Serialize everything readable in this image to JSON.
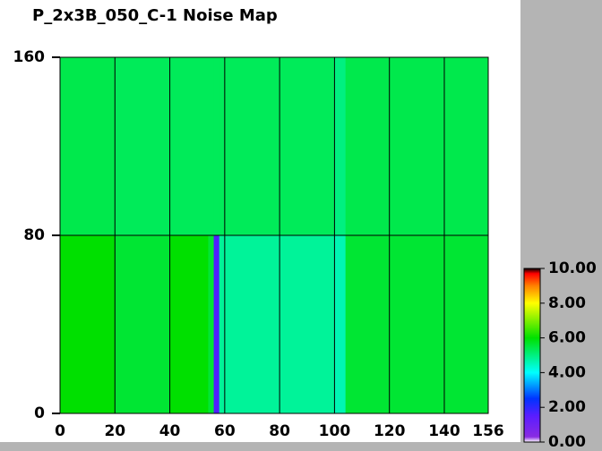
{
  "chart_data": {
    "type": "heatmap",
    "title": "P_2x3B_050_C-1 Noise Map",
    "x_edges": [
      0,
      20,
      40,
      54,
      56,
      58,
      100,
      104,
      156
    ],
    "y_edges": [
      0,
      80,
      160
    ],
    "z": [
      [
        6.0,
        5.6,
        6.0,
        5.6,
        1.6,
        4.8,
        4.6,
        5.6
      ],
      [
        5.4,
        5.3,
        5.3,
        5.3,
        5.3,
        5.3,
        5.0,
        5.4
      ]
    ],
    "xlim": [
      0,
      156
    ],
    "ylim": [
      0,
      160
    ],
    "xticks": [
      0,
      20,
      40,
      60,
      80,
      100,
      120,
      140,
      156
    ],
    "yticks": [
      0,
      80,
      160
    ],
    "grid": true,
    "clim": [
      0,
      10
    ],
    "cticks": [
      {
        "value": 0,
        "label": "0.00"
      },
      {
        "value": 2,
        "label": "2.00"
      },
      {
        "value": 4,
        "label": "4.00"
      },
      {
        "value": 6,
        "label": "6.00"
      },
      {
        "value": 8,
        "label": "8.00"
      },
      {
        "value": 10,
        "label": "10.00"
      }
    ],
    "colorscale": [
      [
        0,
        "#ffffff"
      ],
      [
        0.3,
        "#8a2be2"
      ],
      [
        1.5,
        "#5a1dff"
      ],
      [
        2.5,
        "#0033ff"
      ],
      [
        4,
        "#00ffff"
      ],
      [
        6,
        "#00e000"
      ],
      [
        8,
        "#ffff00"
      ],
      [
        9,
        "#ff8000"
      ],
      [
        9.7,
        "#ff0000"
      ],
      [
        10,
        "#000000"
      ]
    ]
  }
}
